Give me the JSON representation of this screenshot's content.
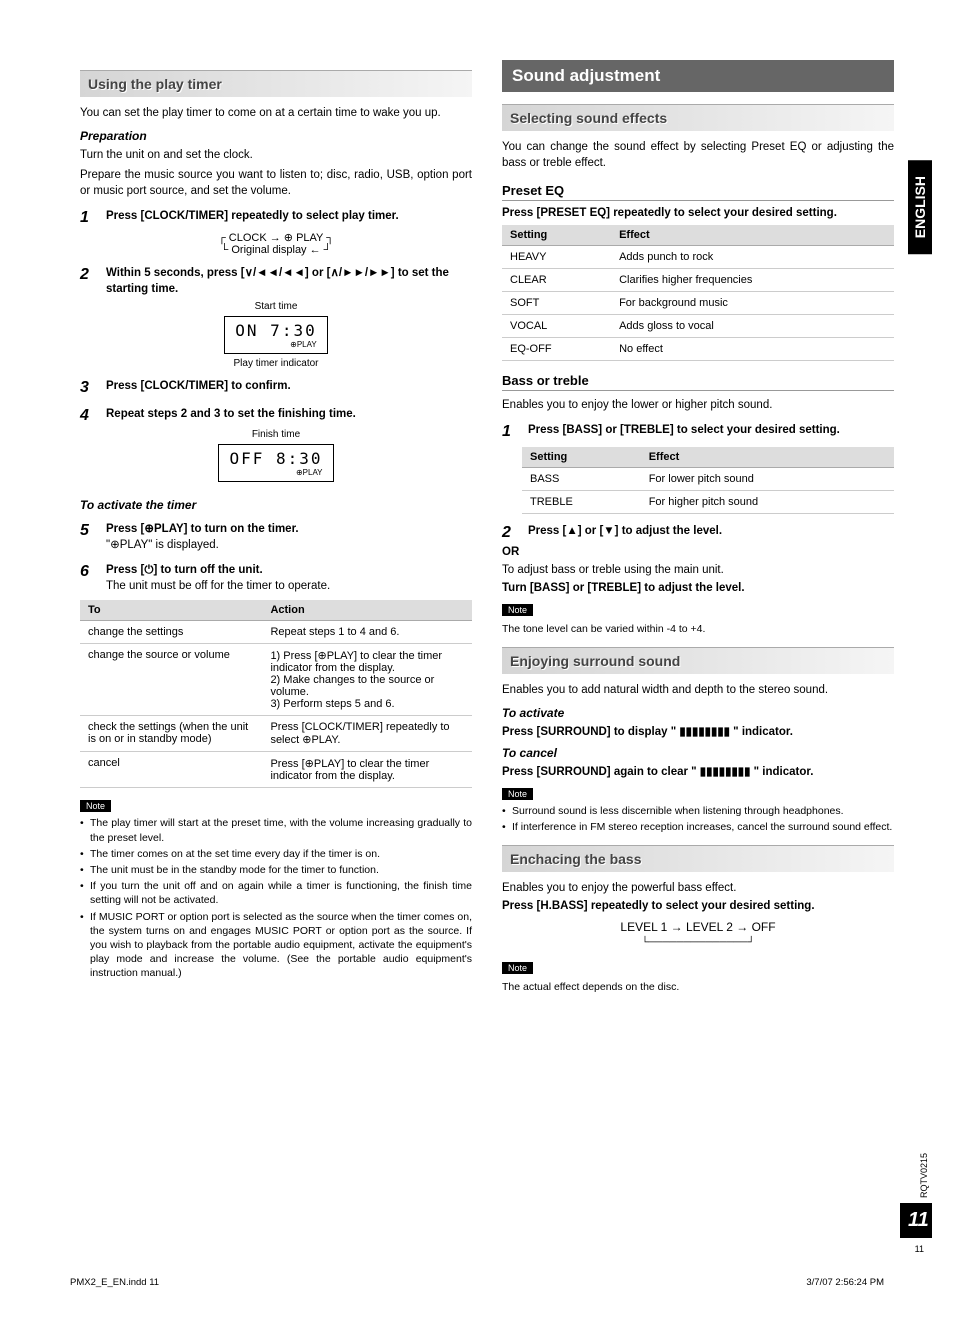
{
  "side": {
    "lang": "ENGLISH",
    "doc_code": "RQTV0215",
    "page_big": "11",
    "page_small": "11"
  },
  "footer": {
    "left": "PMX2_E_EN.indd   11",
    "right": "3/7/07   2:56:24 PM"
  },
  "left": {
    "h_using": "Using the play timer",
    "intro": "You can set the play timer to come on at a certain time to wake you up.",
    "prep_h": "Preparation",
    "prep1": "Turn the unit on and set the clock.",
    "prep2": "Prepare the music source you want to listen to; disc, radio, USB, option port or music port source, and set the volume.",
    "s1": "Press [CLOCK/TIMER] repeatedly to select play timer.",
    "flow_clock": "CLOCK  →  ⊕ PLAY",
    "flow_original": "Original display  ←",
    "s2": "Within 5 seconds, press [∨/◄◄/◄◄] or [∧/►►/►►] to set the starting time.",
    "lbl_start": "Start time",
    "lcd1_top": "ON    7:30",
    "lcd1_bot": "⊕PLAY",
    "lbl_play_ind": "Play timer indicator",
    "s3": "Press [CLOCK/TIMER] to confirm.",
    "s4": "Repeat steps 2 and 3 to set the finishing time.",
    "lbl_finish": "Finish time",
    "lcd2_top": "OFF   8:30",
    "lcd2_bot": "⊕PLAY",
    "activate_h": "To activate the timer",
    "s5a": "Press [⊕PLAY] to turn on the timer.",
    "s5b": "\"⊕PLAY\" is displayed.",
    "s6a": "Press [⏻] to turn off the unit.",
    "s6b": "The unit must be off for the timer to operate.",
    "table": {
      "cols": [
        "To",
        "Action"
      ],
      "rows": [
        [
          "change the settings",
          "Repeat steps 1 to 4 and 6."
        ],
        [
          "change the source or volume",
          "1) Press [⊕PLAY] to clear the timer indicator from the display.\n2) Make changes to the source or volume.\n3) Perform steps 5 and 6."
        ],
        [
          "check the settings (when the unit is on or in standby mode)",
          "Press [CLOCK/TIMER] repeatedly to select ⊕PLAY."
        ],
        [
          "cancel",
          "Press [⊕PLAY] to clear the timer indicator from the display."
        ]
      ]
    },
    "note_label": "Note",
    "notes": [
      "The play timer will start at the preset time, with the volume increasing gradually to the preset level.",
      "The timer comes on at the set time every day if the timer is on.",
      "The unit must be in the standby mode for the timer to function.",
      "If you turn the unit off and on again while a timer is functioning, the finish time setting will not be activated.",
      "If MUSIC PORT or option port is selected as the source when the timer comes on, the system turns on and engages MUSIC PORT or option port as the source. If you wish to playback from the portable audio equipment, activate the equipment's play mode and increase the volume. (See the portable audio equipment's instruction manual.)"
    ]
  },
  "right": {
    "main": "Sound adjustment",
    "sel_h": "Selecting sound effects",
    "sel_intro": "You can change the sound effect by selecting Preset EQ or adjusting the bass or treble effect.",
    "preset_h": "Preset EQ",
    "preset_instr": "Press [PRESET EQ] repeatedly to select your desired setting.",
    "preset_table": {
      "cols": [
        "Setting",
        "Effect"
      ],
      "rows": [
        [
          "HEAVY",
          "Adds punch to rock"
        ],
        [
          "CLEAR",
          "Clarifies higher frequencies"
        ],
        [
          "SOFT",
          "For background music"
        ],
        [
          "VOCAL",
          "Adds gloss to vocal"
        ],
        [
          "EQ-OFF",
          "No effect"
        ]
      ]
    },
    "bt_h": "Bass or treble",
    "bt_intro": "Enables you to enjoy the lower or higher pitch sound.",
    "bt_s1": "Press [BASS] or [TREBLE] to select your desired setting.",
    "bt_table": {
      "cols": [
        "Setting",
        "Effect"
      ],
      "rows": [
        [
          "BASS",
          "For lower pitch sound"
        ],
        [
          "TREBLE",
          "For higher pitch sound"
        ]
      ]
    },
    "bt_s2": "Press [▲] or [▼] to adjust the level.",
    "or": "OR",
    "bt_alt": "To adjust bass or treble using the main unit.",
    "bt_turn": "Turn [BASS] or [TREBLE] to adjust the level.",
    "bt_note": "The tone level can be varied within -4 to +4.",
    "surr_h": "Enjoying surround sound",
    "surr_intro": "Enables you to add natural width and depth to the stereo sound.",
    "surr_act_h": "To activate",
    "surr_act": "Press [SURROUND] to display \" ▮▮▮▮▮▮▮▮ \" indicator.",
    "surr_can_h": "To cancel",
    "surr_can": "Press [SURROUND] again to clear \" ▮▮▮▮▮▮▮▮ \" indicator.",
    "surr_notes": [
      "Surround sound is less discernible when listening through headphones.",
      "If interference in FM stereo reception increases, cancel the surround sound effect."
    ],
    "bass_h": "Enchacing the bass",
    "bass_intro": "Enables you to enjoy the powerful bass effect.",
    "bass_instr": "Press [H.BASS] repeatedly to select your desired setting.",
    "bass_cycle": "LEVEL 1 → LEVEL 2 → OFF",
    "bass_note": "The actual effect depends on the disc."
  }
}
